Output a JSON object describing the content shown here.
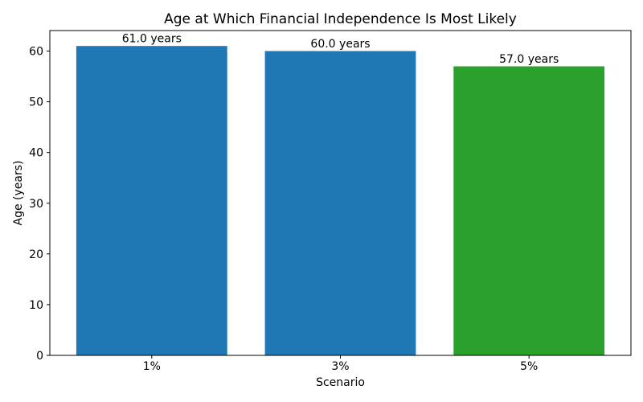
{
  "chart_data": {
    "type": "bar",
    "title": "Age at Which Financial Independence Is Most Likely",
    "xlabel": "Scenario",
    "ylabel": "Age (years)",
    "categories": [
      "1%",
      "3%",
      "5%"
    ],
    "values": [
      61.0,
      60.0,
      57.0
    ],
    "bar_labels": [
      "61.0 years",
      "60.0 years",
      "57.0 years"
    ],
    "bar_colors": [
      "#1f77b4",
      "#1f77b4",
      "#2ca02c"
    ],
    "ylim": [
      0,
      64.05
    ],
    "yticks": [
      0,
      10,
      20,
      30,
      40,
      50,
      60
    ],
    "xlim": [
      -0.54,
      2.54
    ],
    "bar_width": 0.8,
    "grid": false,
    "legend": null,
    "axis_color": "#000000",
    "background_color": "#ffffff"
  }
}
